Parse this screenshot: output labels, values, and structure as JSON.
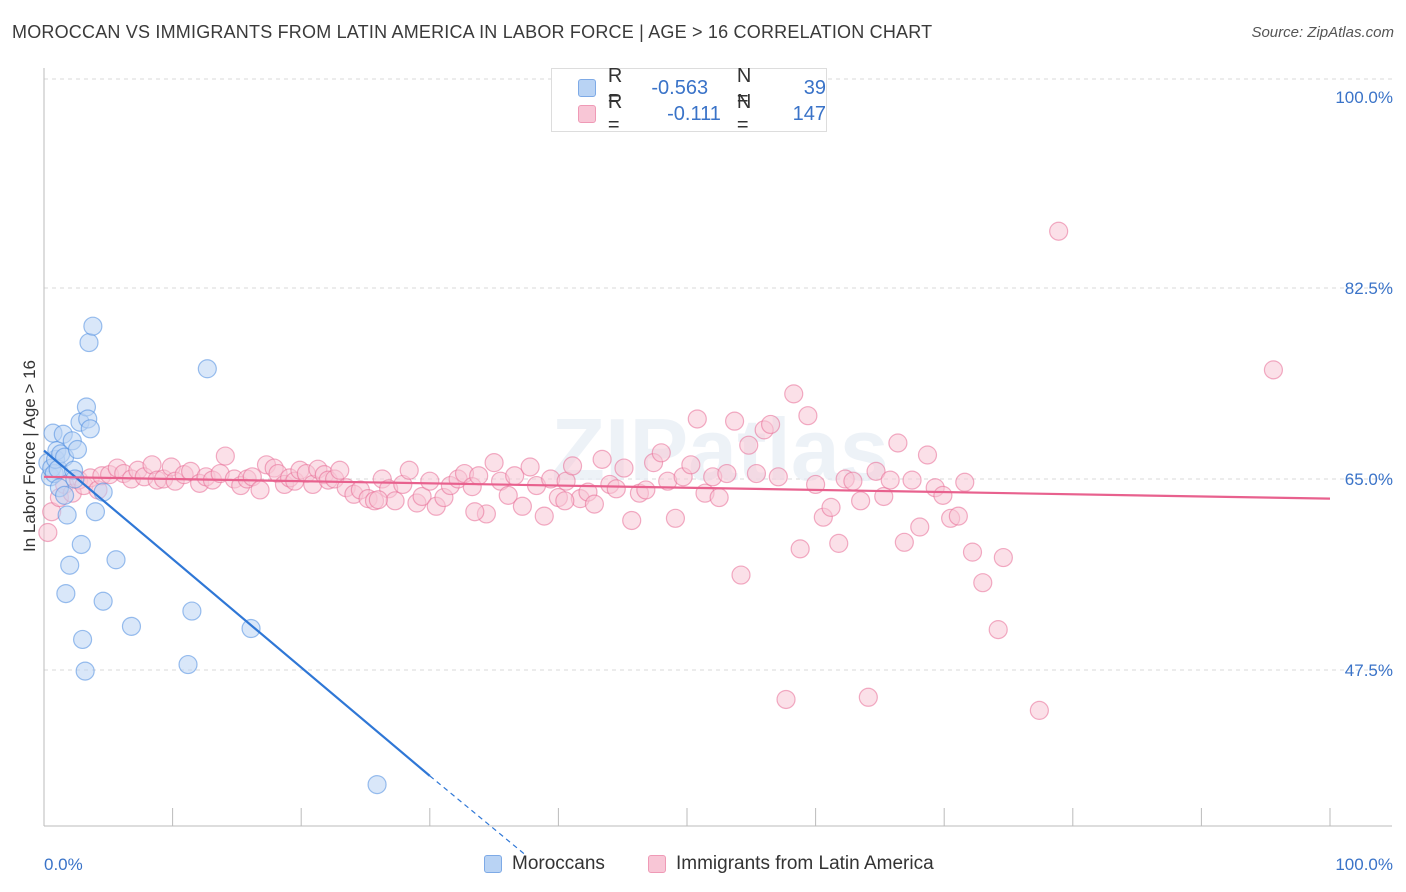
{
  "title": "MOROCCAN VS IMMIGRANTS FROM LATIN AMERICA IN LABOR FORCE | AGE > 16 CORRELATION CHART",
  "source": "Source: ZipAtlas.com",
  "legend_top": {
    "rows": [
      {
        "r_label": "R =",
        "r_value": "-0.563",
        "n_label": "N =",
        "n_value": "39",
        "color": "#a8c8f0"
      },
      {
        "r_label": "R =",
        "r_value": "-0.111",
        "n_label": "N =",
        "n_value": "147",
        "color": "#f5b8cb"
      }
    ]
  },
  "chart_data": {
    "type": "scatter",
    "xlabel": "",
    "ylabel": "In Labor Force | Age > 16",
    "xlim": [
      0,
      100
    ],
    "ylim": [
      31,
      100
    ],
    "x_tick_labels": [
      "0.0%",
      "100.0%"
    ],
    "y_tick_values": [
      100.0,
      82.5,
      65.0,
      47.5
    ],
    "y_tick_labels": [
      "100.0%",
      "82.5%",
      "65.0%",
      "47.5%"
    ],
    "grid": true,
    "legend_position": "bottom",
    "series": [
      {
        "name": "Moroccans",
        "color": "#4d8de0",
        "fill": "#b9d3f4",
        "points": [
          [
            0.3,
            66.5
          ],
          [
            0.5,
            65.2
          ],
          [
            0.6,
            66.0
          ],
          [
            0.8,
            65.5
          ],
          [
            0.9,
            66.8
          ],
          [
            0.7,
            69.2
          ],
          [
            1.0,
            67.6
          ],
          [
            1.1,
            65.9
          ],
          [
            1.2,
            64.2
          ],
          [
            1.3,
            67.3
          ],
          [
            1.5,
            69.1
          ],
          [
            1.6,
            67.0
          ],
          [
            1.6,
            63.5
          ],
          [
            1.7,
            54.5
          ],
          [
            1.8,
            61.7
          ],
          [
            2.0,
            57.1
          ],
          [
            2.2,
            68.5
          ],
          [
            2.3,
            65.8
          ],
          [
            2.4,
            65.0
          ],
          [
            2.6,
            67.7
          ],
          [
            2.8,
            70.2
          ],
          [
            2.9,
            59.0
          ],
          [
            3.0,
            50.3
          ],
          [
            3.2,
            47.4
          ],
          [
            3.3,
            71.6
          ],
          [
            3.4,
            70.5
          ],
          [
            3.5,
            77.5
          ],
          [
            3.6,
            69.6
          ],
          [
            3.8,
            79.0
          ],
          [
            4.0,
            62.0
          ],
          [
            4.6,
            53.8
          ],
          [
            4.6,
            63.8
          ],
          [
            5.6,
            57.6
          ],
          [
            6.8,
            51.5
          ],
          [
            11.2,
            48.0
          ],
          [
            11.5,
            52.9
          ],
          [
            12.7,
            75.1
          ],
          [
            16.1,
            51.3
          ],
          [
            25.9,
            37.0
          ]
        ],
        "trend": {
          "x": [
            0,
            30
          ],
          "y": [
            67.6,
            37.8
          ]
        },
        "trend_extension": {
          "x": [
            30,
            37.5
          ],
          "y": [
            37.8,
            30.5
          ]
        }
      },
      {
        "name": "Immigrants from Latin America",
        "color": "#e86b95",
        "fill": "#f8c6d6",
        "points": [
          [
            0.3,
            60.1
          ],
          [
            0.6,
            62.0
          ],
          [
            1.2,
            63.3
          ],
          [
            1.6,
            64.5
          ],
          [
            2.2,
            63.7
          ],
          [
            2.7,
            64.9
          ],
          [
            3.1,
            64.4
          ],
          [
            3.6,
            65.1
          ],
          [
            4.2,
            64.0
          ],
          [
            4.5,
            65.3
          ],
          [
            5.1,
            65.4
          ],
          [
            5.7,
            66.0
          ],
          [
            6.2,
            65.5
          ],
          [
            6.8,
            65.0
          ],
          [
            7.3,
            65.8
          ],
          [
            7.8,
            65.2
          ],
          [
            8.4,
            66.3
          ],
          [
            8.8,
            64.9
          ],
          [
            9.3,
            65.0
          ],
          [
            9.9,
            66.1
          ],
          [
            10.2,
            64.8
          ],
          [
            10.9,
            65.4
          ],
          [
            11.4,
            65.7
          ],
          [
            12.1,
            64.6
          ],
          [
            12.6,
            65.2
          ],
          [
            13.1,
            64.9
          ],
          [
            13.7,
            65.5
          ],
          [
            14.1,
            67.1
          ],
          [
            14.8,
            65.0
          ],
          [
            15.3,
            64.4
          ],
          [
            15.8,
            65.0
          ],
          [
            16.2,
            65.2
          ],
          [
            16.8,
            64.0
          ],
          [
            17.3,
            66.3
          ],
          [
            17.9,
            66.0
          ],
          [
            18.2,
            65.5
          ],
          [
            18.7,
            64.5
          ],
          [
            19.1,
            65.1
          ],
          [
            19.5,
            64.8
          ],
          [
            19.9,
            65.8
          ],
          [
            20.4,
            65.5
          ],
          [
            20.9,
            64.5
          ],
          [
            21.3,
            65.9
          ],
          [
            21.8,
            65.4
          ],
          [
            22.1,
            64.9
          ],
          [
            22.6,
            65.0
          ],
          [
            23.0,
            65.8
          ],
          [
            23.5,
            64.2
          ],
          [
            24.1,
            63.6
          ],
          [
            24.6,
            64.0
          ],
          [
            25.2,
            63.2
          ],
          [
            25.7,
            63.0
          ],
          [
            26.3,
            65.0
          ],
          [
            26.8,
            64.1
          ],
          [
            27.3,
            63.0
          ],
          [
            27.9,
            64.5
          ],
          [
            28.4,
            65.8
          ],
          [
            29.0,
            62.8
          ],
          [
            29.4,
            63.4
          ],
          [
            30.0,
            64.8
          ],
          [
            30.5,
            62.5
          ],
          [
            31.1,
            63.3
          ],
          [
            31.6,
            64.4
          ],
          [
            32.2,
            65.0
          ],
          [
            32.7,
            65.5
          ],
          [
            33.3,
            64.3
          ],
          [
            33.8,
            65.3
          ],
          [
            34.4,
            61.8
          ],
          [
            35.0,
            66.5
          ],
          [
            35.5,
            64.8
          ],
          [
            36.1,
            63.5
          ],
          [
            36.6,
            65.3
          ],
          [
            37.2,
            62.5
          ],
          [
            37.8,
            66.1
          ],
          [
            38.3,
            64.4
          ],
          [
            38.9,
            61.6
          ],
          [
            39.4,
            65.0
          ],
          [
            40.0,
            63.3
          ],
          [
            40.6,
            64.8
          ],
          [
            41.1,
            66.2
          ],
          [
            41.7,
            63.2
          ],
          [
            42.3,
            63.8
          ],
          [
            42.8,
            62.7
          ],
          [
            43.4,
            66.8
          ],
          [
            44.0,
            64.5
          ],
          [
            44.5,
            64.1
          ],
          [
            45.1,
            66.0
          ],
          [
            45.7,
            61.2
          ],
          [
            46.3,
            63.7
          ],
          [
            46.8,
            64.0
          ],
          [
            47.4,
            66.5
          ],
          [
            48.0,
            67.4
          ],
          [
            48.5,
            64.8
          ],
          [
            49.1,
            61.4
          ],
          [
            49.7,
            65.2
          ],
          [
            50.3,
            66.3
          ],
          [
            50.8,
            70.5
          ],
          [
            51.4,
            63.7
          ],
          [
            52.0,
            65.2
          ],
          [
            52.5,
            63.3
          ],
          [
            53.1,
            65.5
          ],
          [
            53.7,
            70.3
          ],
          [
            54.2,
            56.2
          ],
          [
            54.8,
            68.1
          ],
          [
            55.4,
            65.5
          ],
          [
            56.0,
            69.5
          ],
          [
            56.5,
            70.0
          ],
          [
            57.1,
            65.2
          ],
          [
            57.7,
            44.8
          ],
          [
            58.3,
            72.8
          ],
          [
            58.8,
            58.6
          ],
          [
            59.4,
            70.8
          ],
          [
            60.0,
            64.5
          ],
          [
            60.6,
            61.5
          ],
          [
            61.2,
            62.4
          ],
          [
            61.8,
            59.1
          ],
          [
            62.3,
            65.0
          ],
          [
            62.9,
            64.8
          ],
          [
            63.5,
            63.0
          ],
          [
            64.1,
            45.0
          ],
          [
            64.7,
            65.7
          ],
          [
            65.3,
            63.4
          ],
          [
            65.8,
            64.9
          ],
          [
            66.4,
            68.3
          ],
          [
            66.9,
            59.2
          ],
          [
            67.5,
            64.9
          ],
          [
            68.1,
            60.6
          ],
          [
            68.7,
            67.2
          ],
          [
            69.3,
            64.2
          ],
          [
            69.9,
            63.5
          ],
          [
            70.5,
            61.4
          ],
          [
            71.1,
            61.6
          ],
          [
            71.6,
            64.7
          ],
          [
            72.2,
            58.3
          ],
          [
            73.0,
            55.5
          ],
          [
            74.2,
            51.2
          ],
          [
            74.6,
            57.8
          ],
          [
            77.4,
            43.8
          ],
          [
            78.9,
            87.7
          ],
          [
            95.6,
            75.0
          ],
          [
            40.5,
            63.0
          ],
          [
            33.5,
            62.0
          ],
          [
            26.0,
            63.1
          ]
        ],
        "trend": {
          "x": [
            0,
            100
          ],
          "y": [
            65.2,
            63.2
          ]
        }
      }
    ]
  },
  "watermark": "ZIPatlas"
}
